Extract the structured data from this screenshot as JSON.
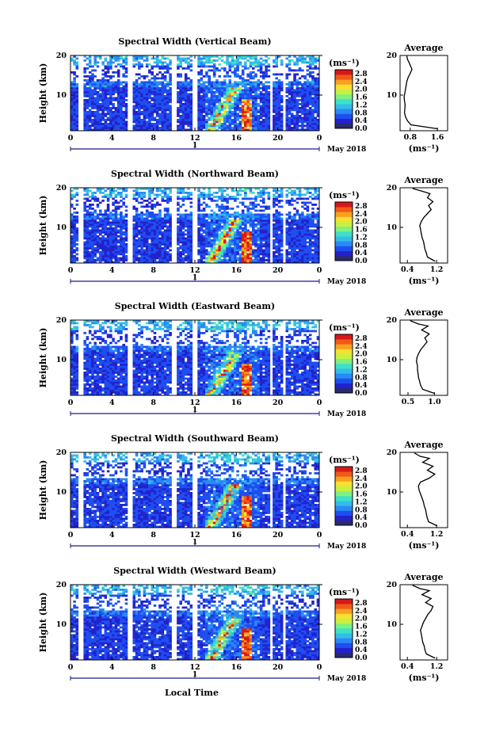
{
  "figure": {
    "ylabel": "Height (km)",
    "xlabel": "Local Time",
    "date_label": "May 2018",
    "day_label": "1",
    "colorbar_unit": "(ms⁻¹)",
    "avg_unit": "(ms⁻¹)"
  },
  "colors": {
    "colormap": [
      "#2a2a6e",
      "#2222cc",
      "#1e4ef0",
      "#2a8af5",
      "#33bde8",
      "#3fe0c8",
      "#80f080",
      "#c8f040",
      "#f8e030",
      "#f8a020",
      "#f05a18",
      "#d81818"
    ],
    "avg_line": "#000000",
    "time_axis_line": "#1a1a8c"
  },
  "chart_data": [
    {
      "type": "heatmap",
      "title": "Spectral Width (Vertical Beam)",
      "x_ticks": [
        "0",
        "4",
        "8",
        "12",
        "16",
        "20",
        "0"
      ],
      "xlim": [
        0,
        24
      ],
      "y_ticks": [
        "10",
        "20"
      ],
      "ylim": [
        1,
        20
      ],
      "colorbar_ticks": [
        "0.0",
        "0.4",
        "0.8",
        "1.2",
        "1.6",
        "2.0",
        "2.4",
        "2.8"
      ],
      "colorbar_range": [
        0,
        3.0
      ],
      "data_gaps_hours": [
        [
          0.7,
          1.3
        ],
        [
          5.6,
          6.0
        ],
        [
          9.8,
          10.2
        ],
        [
          11.8,
          12.2
        ],
        [
          19.2,
          19.4
        ],
        [
          20.6,
          20.8
        ]
      ],
      "average_profile": {
        "title": "Average",
        "xlabel": "(ms⁻¹)",
        "x_ticks": [
          "0.8",
          "1.6"
        ],
        "xlim": [
          0.5,
          1.9
        ],
        "y_ticks": [
          "10",
          "20"
        ],
        "ylim": [
          1,
          20
        ],
        "x": [
          1.6,
          0.82,
          0.72,
          0.66,
          0.63,
          0.64,
          0.65,
          0.63,
          0.62,
          0.64,
          0.66,
          0.68,
          0.7,
          0.74,
          0.8,
          0.85,
          0.8,
          0.75,
          0.72,
          0.7
        ],
        "y": [
          1.5,
          2.5,
          3.5,
          4.5,
          5.5,
          6.5,
          7.5,
          8.5,
          9.5,
          10.5,
          11.5,
          12.5,
          13.5,
          14.5,
          15.5,
          16.5,
          17.5,
          18.5,
          19.0,
          19.8
        ]
      }
    },
    {
      "type": "heatmap",
      "title": "Spectral Width (Northward Beam)",
      "x_ticks": [
        "0",
        "4",
        "8",
        "12",
        "16",
        "20",
        "0"
      ],
      "xlim": [
        0,
        24
      ],
      "y_ticks": [
        "10",
        "20"
      ],
      "ylim": [
        1,
        20
      ],
      "colorbar_ticks": [
        "0.0",
        "0.4",
        "0.8",
        "1.2",
        "1.6",
        "2.0",
        "2.4",
        "2.8"
      ],
      "colorbar_range": [
        0,
        3.0
      ],
      "data_gaps_hours": [
        [
          0.7,
          1.3
        ],
        [
          5.6,
          6.0
        ],
        [
          9.8,
          10.2
        ],
        [
          11.8,
          12.2
        ],
        [
          19.2,
          19.4
        ],
        [
          20.6,
          20.8
        ]
      ],
      "average_profile": {
        "title": "Average",
        "xlabel": "(ms⁻¹)",
        "x_ticks": [
          "0.4",
          "1.2"
        ],
        "xlim": [
          0.2,
          1.5
        ],
        "y_ticks": [
          "10",
          "20"
        ],
        "ylim": [
          1,
          20
        ],
        "x": [
          1.15,
          0.95,
          0.92,
          0.88,
          0.86,
          0.84,
          0.8,
          0.78,
          0.76,
          0.74,
          0.78,
          0.85,
          0.95,
          1.05,
          0.98,
          1.1,
          0.95,
          1.02,
          0.85,
          0.55
        ],
        "y": [
          1.5,
          2.5,
          3.5,
          4.5,
          5.5,
          6.5,
          7.5,
          8.5,
          9.5,
          10.5,
          11.5,
          12.5,
          13.5,
          14.5,
          15.5,
          16.5,
          17.5,
          18.5,
          19.0,
          19.8
        ]
      }
    },
    {
      "type": "heatmap",
      "title": "Spectral Width (Eastward Beam)",
      "x_ticks": [
        "0",
        "4",
        "8",
        "12",
        "16",
        "20",
        "0"
      ],
      "xlim": [
        0,
        24
      ],
      "y_ticks": [
        "10",
        "20"
      ],
      "ylim": [
        1,
        20
      ],
      "colorbar_ticks": [
        "0.0",
        "0.4",
        "0.8",
        "1.2",
        "1.6",
        "2.0",
        "2.4",
        "2.8"
      ],
      "colorbar_range": [
        0,
        3.0
      ],
      "data_gaps_hours": [
        [
          0.7,
          1.3
        ],
        [
          5.6,
          6.0
        ],
        [
          9.8,
          10.2
        ],
        [
          11.8,
          12.2
        ],
        [
          19.2,
          19.4
        ],
        [
          20.6,
          20.8
        ]
      ],
      "average_profile": {
        "title": "Average",
        "xlabel": "",
        "x_ticks": [
          "0.5",
          "1.0"
        ],
        "xlim": [
          0.35,
          1.25
        ],
        "y_ticks": [
          "10",
          "20"
        ],
        "ylim": [
          1,
          20
        ],
        "x": [
          1.0,
          0.78,
          0.74,
          0.72,
          0.7,
          0.69,
          0.68,
          0.68,
          0.66,
          0.67,
          0.7,
          0.74,
          0.8,
          0.86,
          0.82,
          0.9,
          0.76,
          0.88,
          0.7,
          0.55
        ],
        "y": [
          1.5,
          2.5,
          3.5,
          4.5,
          5.5,
          6.5,
          7.5,
          8.5,
          9.5,
          10.5,
          11.5,
          12.5,
          13.5,
          14.5,
          15.5,
          16.5,
          17.5,
          18.5,
          19.0,
          19.8
        ]
      }
    },
    {
      "type": "heatmap",
      "title": "Spectral Width (Southward Beam)",
      "x_ticks": [
        "0",
        "4",
        "8",
        "12",
        "16",
        "20",
        "0"
      ],
      "xlim": [
        0,
        24
      ],
      "y_ticks": [
        "10",
        "20"
      ],
      "ylim": [
        1,
        20
      ],
      "colorbar_ticks": [
        "0.0",
        "0.4",
        "0.8",
        "1.2",
        "1.6",
        "2.0",
        "2.4",
        "2.8"
      ],
      "colorbar_range": [
        0,
        3.0
      ],
      "data_gaps_hours": [
        [
          0.7,
          1.3
        ],
        [
          5.6,
          6.0
        ],
        [
          9.8,
          10.2
        ],
        [
          11.8,
          12.2
        ],
        [
          19.2,
          19.4
        ],
        [
          20.6,
          20.8
        ]
      ],
      "average_profile": {
        "title": "Average",
        "xlabel": "(ms⁻¹)",
        "x_ticks": [
          "0.4",
          "1.2"
        ],
        "xlim": [
          0.2,
          1.5
        ],
        "y_ticks": [
          "10",
          "20"
        ],
        "ylim": [
          1,
          20
        ],
        "x": [
          1.2,
          0.98,
          0.94,
          0.92,
          0.9,
          0.86,
          0.84,
          0.8,
          0.76,
          0.72,
          0.7,
          0.76,
          1.0,
          1.15,
          0.95,
          1.1,
          0.82,
          1.0,
          0.75,
          0.6
        ],
        "y": [
          1.5,
          2.5,
          3.5,
          4.5,
          5.5,
          6.5,
          7.5,
          8.5,
          9.5,
          10.5,
          11.5,
          12.5,
          13.5,
          14.5,
          15.5,
          16.5,
          17.5,
          18.5,
          19.0,
          19.8
        ]
      }
    },
    {
      "type": "heatmap",
      "title": "Spectral Width (Westward Beam)",
      "x_ticks": [
        "0",
        "4",
        "8",
        "12",
        "16",
        "20",
        "0"
      ],
      "xlim": [
        0,
        24
      ],
      "y_ticks": [
        "10",
        "20"
      ],
      "ylim": [
        1,
        20
      ],
      "colorbar_ticks": [
        "0.0",
        "0.4",
        "0.8",
        "1.2",
        "1.6",
        "2.0",
        "2.4",
        "2.8"
      ],
      "colorbar_range": [
        0,
        3.0
      ],
      "data_gaps_hours": [
        [
          0.7,
          1.3
        ],
        [
          5.6,
          6.0
        ],
        [
          9.8,
          10.2
        ],
        [
          11.8,
          12.2
        ],
        [
          19.2,
          19.4
        ],
        [
          20.6,
          20.8
        ]
      ],
      "average_profile": {
        "title": "Average",
        "xlabel": "(ms⁻¹)",
        "x_ticks": [
          "0.4",
          "1.2"
        ],
        "xlim": [
          0.2,
          1.5
        ],
        "y_ticks": [
          "10",
          "20"
        ],
        "ylim": [
          1,
          20
        ],
        "x": [
          1.15,
          0.92,
          0.88,
          0.86,
          0.82,
          0.8,
          0.78,
          0.76,
          0.8,
          0.84,
          0.9,
          0.96,
          1.05,
          1.1,
          0.9,
          1.05,
          0.8,
          1.0,
          0.75,
          0.55
        ],
        "y": [
          1.5,
          2.5,
          3.5,
          4.5,
          5.5,
          6.5,
          7.5,
          8.5,
          9.5,
          10.5,
          11.5,
          12.5,
          13.5,
          14.5,
          15.5,
          16.5,
          17.5,
          18.5,
          19.0,
          19.8
        ]
      }
    }
  ]
}
